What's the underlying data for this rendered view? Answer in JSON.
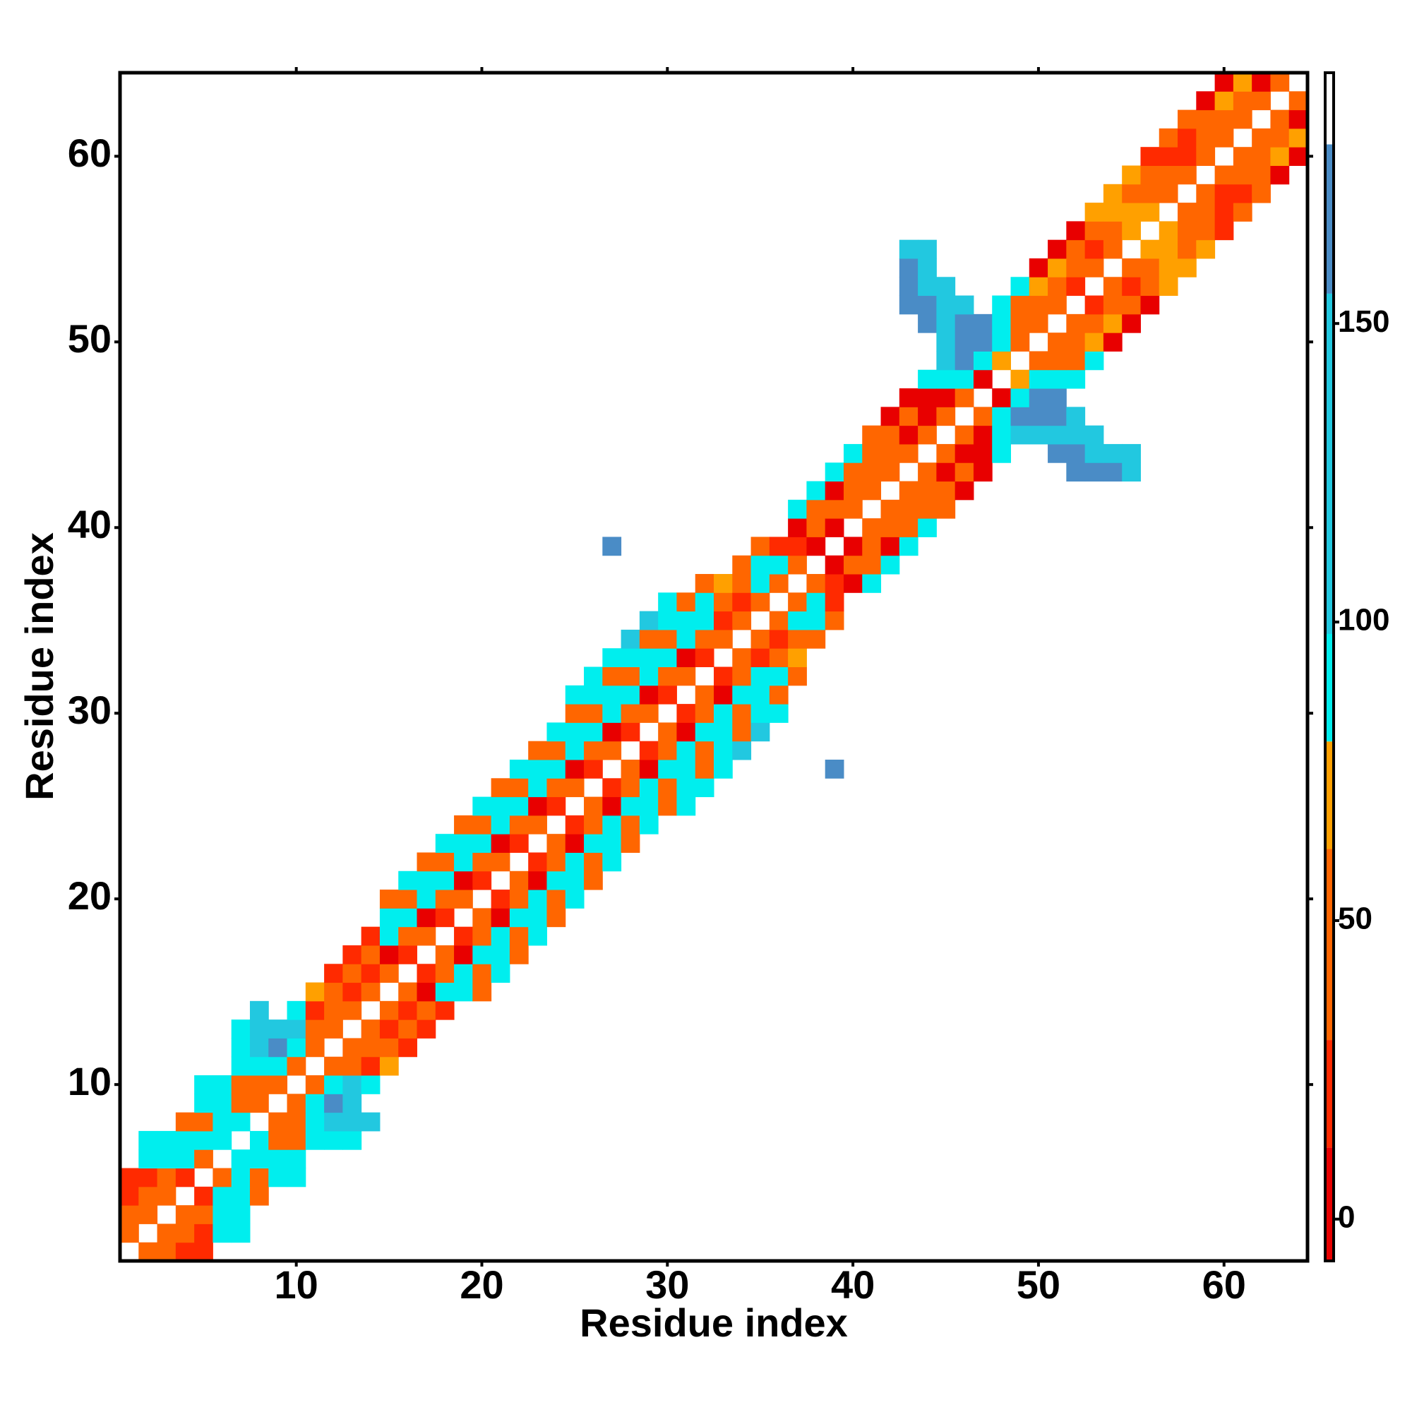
{
  "chart_data": {
    "type": "heatmap",
    "xlabel": "Residue index",
    "ylabel": "Residue index",
    "xlim": [
      0.5,
      64.5
    ],
    "ylim": [
      0.5,
      64.5
    ],
    "xticks": [
      10,
      20,
      30,
      40,
      50,
      60
    ],
    "yticks": [
      10,
      20,
      30,
      40,
      50,
      60
    ],
    "symmetric": true,
    "clim": [
      -7,
      192
    ],
    "cticks": [
      0,
      50,
      100,
      150
    ],
    "colorscale": [
      [
        -7,
        "#e80000"
      ],
      [
        12,
        "#ff2a00"
      ],
      [
        30,
        "#ff6600"
      ],
      [
        62,
        "#ffa000"
      ],
      [
        80,
        "#00eeee"
      ],
      [
        98,
        "#22c8e0"
      ],
      [
        155,
        "#4a8cc6"
      ],
      [
        180,
        "#ffffff"
      ]
    ],
    "cells": [
      [
        1,
        2,
        45
      ],
      [
        1,
        3,
        45
      ],
      [
        1,
        4,
        20
      ],
      [
        1,
        5,
        20
      ],
      [
        2,
        3,
        45
      ],
      [
        2,
        4,
        45
      ],
      [
        2,
        5,
        20
      ],
      [
        2,
        6,
        88
      ],
      [
        2,
        7,
        88
      ],
      [
        3,
        4,
        45
      ],
      [
        3,
        5,
        45
      ],
      [
        3,
        6,
        88
      ],
      [
        3,
        7,
        88
      ],
      [
        4,
        5,
        20
      ],
      [
        4,
        6,
        88
      ],
      [
        4,
        7,
        88
      ],
      [
        4,
        8,
        45
      ],
      [
        5,
        6,
        45
      ],
      [
        5,
        7,
        88
      ],
      [
        5,
        8,
        45
      ],
      [
        5,
        9,
        88
      ],
      [
        5,
        10,
        88
      ],
      [
        6,
        7,
        88
      ],
      [
        6,
        8,
        88
      ],
      [
        6,
        9,
        88
      ],
      [
        6,
        10,
        88
      ],
      [
        7,
        8,
        88
      ],
      [
        7,
        9,
        45
      ],
      [
        7,
        10,
        45
      ],
      [
        7,
        11,
        88
      ],
      [
        7,
        12,
        88
      ],
      [
        7,
        13,
        88
      ],
      [
        8,
        9,
        45
      ],
      [
        8,
        10,
        45
      ],
      [
        8,
        11,
        88
      ],
      [
        8,
        12,
        120
      ],
      [
        8,
        13,
        120
      ],
      [
        8,
        14,
        120
      ],
      [
        9,
        10,
        45
      ],
      [
        9,
        11,
        88
      ],
      [
        9,
        12,
        165
      ],
      [
        9,
        13,
        120
      ],
      [
        10,
        11,
        45
      ],
      [
        10,
        12,
        88
      ],
      [
        10,
        13,
        120
      ],
      [
        10,
        14,
        88
      ],
      [
        11,
        12,
        45
      ],
      [
        11,
        13,
        45
      ],
      [
        11,
        14,
        20
      ],
      [
        11,
        15,
        70
      ],
      [
        12,
        13,
        45
      ],
      [
        12,
        14,
        45
      ],
      [
        12,
        15,
        45
      ],
      [
        12,
        16,
        20
      ],
      [
        13,
        14,
        45
      ],
      [
        13,
        15,
        20
      ],
      [
        13,
        16,
        45
      ],
      [
        13,
        17,
        20
      ],
      [
        14,
        15,
        45
      ],
      [
        14,
        16,
        20
      ],
      [
        14,
        17,
        45
      ],
      [
        14,
        18,
        20
      ],
      [
        15,
        16,
        45
      ],
      [
        15,
        17,
        5
      ],
      [
        15,
        18,
        88
      ],
      [
        15,
        19,
        88
      ],
      [
        15,
        20,
        45
      ],
      [
        16,
        17,
        20
      ],
      [
        16,
        18,
        45
      ],
      [
        16,
        19,
        88
      ],
      [
        16,
        20,
        45
      ],
      [
        16,
        21,
        88
      ],
      [
        17,
        18,
        45
      ],
      [
        17,
        19,
        5
      ],
      [
        17,
        20,
        88
      ],
      [
        17,
        21,
        88
      ],
      [
        17,
        22,
        45
      ],
      [
        18,
        19,
        20
      ],
      [
        18,
        20,
        45
      ],
      [
        18,
        21,
        88
      ],
      [
        18,
        22,
        45
      ],
      [
        18,
        23,
        88
      ],
      [
        19,
        20,
        45
      ],
      [
        19,
        21,
        5
      ],
      [
        19,
        22,
        88
      ],
      [
        19,
        23,
        88
      ],
      [
        19,
        24,
        45
      ],
      [
        20,
        21,
        20
      ],
      [
        20,
        22,
        45
      ],
      [
        20,
        23,
        88
      ],
      [
        20,
        24,
        45
      ],
      [
        20,
        25,
        88
      ],
      [
        21,
        22,
        45
      ],
      [
        21,
        23,
        5
      ],
      [
        21,
        24,
        88
      ],
      [
        21,
        25,
        88
      ],
      [
        21,
        26,
        45
      ],
      [
        22,
        23,
        20
      ],
      [
        22,
        24,
        45
      ],
      [
        22,
        25,
        88
      ],
      [
        22,
        26,
        45
      ],
      [
        22,
        27,
        88
      ],
      [
        23,
        24,
        45
      ],
      [
        23,
        25,
        5
      ],
      [
        23,
        26,
        88
      ],
      [
        23,
        27,
        88
      ],
      [
        23,
        28,
        45
      ],
      [
        24,
        25,
        20
      ],
      [
        24,
        26,
        45
      ],
      [
        24,
        27,
        88
      ],
      [
        24,
        28,
        45
      ],
      [
        24,
        29,
        88
      ],
      [
        25,
        26,
        45
      ],
      [
        25,
        27,
        5
      ],
      [
        25,
        28,
        88
      ],
      [
        25,
        29,
        88
      ],
      [
        25,
        30,
        45
      ],
      [
        25,
        31,
        88
      ],
      [
        26,
        27,
        20
      ],
      [
        26,
        28,
        45
      ],
      [
        26,
        29,
        88
      ],
      [
        26,
        30,
        45
      ],
      [
        26,
        31,
        88
      ],
      [
        26,
        32,
        88
      ],
      [
        27,
        28,
        45
      ],
      [
        27,
        29,
        5
      ],
      [
        27,
        30,
        88
      ],
      [
        27,
        31,
        88
      ],
      [
        27,
        32,
        45
      ],
      [
        27,
        33,
        88
      ],
      [
        27,
        39,
        165
      ],
      [
        28,
        29,
        20
      ],
      [
        28,
        30,
        45
      ],
      [
        28,
        31,
        88
      ],
      [
        28,
        32,
        45
      ],
      [
        28,
        33,
        88
      ],
      [
        28,
        34,
        120
      ],
      [
        29,
        30,
        45
      ],
      [
        29,
        31,
        5
      ],
      [
        29,
        32,
        88
      ],
      [
        29,
        33,
        88
      ],
      [
        29,
        34,
        45
      ],
      [
        29,
        35,
        120
      ],
      [
        30,
        31,
        20
      ],
      [
        30,
        32,
        45
      ],
      [
        30,
        33,
        88
      ],
      [
        30,
        34,
        45
      ],
      [
        30,
        35,
        88
      ],
      [
        30,
        36,
        88
      ],
      [
        31,
        32,
        45
      ],
      [
        31,
        33,
        5
      ],
      [
        31,
        34,
        88
      ],
      [
        31,
        35,
        88
      ],
      [
        31,
        36,
        45
      ],
      [
        32,
        33,
        20
      ],
      [
        32,
        34,
        45
      ],
      [
        32,
        35,
        88
      ],
      [
        32,
        36,
        88
      ],
      [
        32,
        37,
        45
      ],
      [
        33,
        34,
        45
      ],
      [
        33,
        35,
        20
      ],
      [
        33,
        36,
        45
      ],
      [
        33,
        37,
        70
      ],
      [
        34,
        35,
        45
      ],
      [
        34,
        36,
        20
      ],
      [
        34,
        37,
        45
      ],
      [
        34,
        38,
        45
      ],
      [
        35,
        36,
        45
      ],
      [
        35,
        37,
        88
      ],
      [
        35,
        38,
        88
      ],
      [
        35,
        39,
        45
      ],
      [
        36,
        37,
        45
      ],
      [
        36,
        38,
        88
      ],
      [
        36,
        39,
        20
      ],
      [
        37,
        38,
        45
      ],
      [
        37,
        39,
        20
      ],
      [
        37,
        40,
        5
      ],
      [
        37,
        41,
        88
      ],
      [
        38,
        39,
        5
      ],
      [
        38,
        40,
        45
      ],
      [
        38,
        41,
        45
      ],
      [
        38,
        42,
        88
      ],
      [
        39,
        40,
        5
      ],
      [
        39,
        41,
        45
      ],
      [
        39,
        42,
        5
      ],
      [
        39,
        43,
        88
      ],
      [
        40,
        41,
        45
      ],
      [
        40,
        42,
        45
      ],
      [
        40,
        43,
        45
      ],
      [
        40,
        44,
        88
      ],
      [
        41,
        42,
        45
      ],
      [
        41,
        43,
        45
      ],
      [
        41,
        44,
        45
      ],
      [
        41,
        45,
        45
      ],
      [
        42,
        43,
        45
      ],
      [
        42,
        44,
        45
      ],
      [
        42,
        45,
        45
      ],
      [
        42,
        46,
        5
      ],
      [
        43,
        44,
        45
      ],
      [
        43,
        45,
        5
      ],
      [
        43,
        46,
        45
      ],
      [
        43,
        47,
        5
      ],
      [
        43,
        52,
        165
      ],
      [
        43,
        53,
        165
      ],
      [
        43,
        54,
        165
      ],
      [
        43,
        55,
        120
      ],
      [
        44,
        45,
        45
      ],
      [
        44,
        46,
        5
      ],
      [
        44,
        47,
        5
      ],
      [
        44,
        48,
        88
      ],
      [
        44,
        51,
        165
      ],
      [
        44,
        52,
        165
      ],
      [
        44,
        53,
        120
      ],
      [
        44,
        54,
        120
      ],
      [
        44,
        55,
        120
      ],
      [
        45,
        46,
        45
      ],
      [
        45,
        47,
        5
      ],
      [
        45,
        48,
        88
      ],
      [
        45,
        49,
        120
      ],
      [
        45,
        50,
        120
      ],
      [
        45,
        51,
        120
      ],
      [
        45,
        52,
        120
      ],
      [
        45,
        53,
        120
      ],
      [
        46,
        47,
        45
      ],
      [
        46,
        48,
        88
      ],
      [
        46,
        49,
        165
      ],
      [
        46,
        50,
        165
      ],
      [
        46,
        51,
        165
      ],
      [
        46,
        52,
        120
      ],
      [
        47,
        48,
        5
      ],
      [
        47,
        49,
        88
      ],
      [
        47,
        50,
        165
      ],
      [
        47,
        51,
        165
      ],
      [
        48,
        49,
        70
      ],
      [
        48,
        50,
        88
      ],
      [
        48,
        51,
        88
      ],
      [
        48,
        52,
        88
      ],
      [
        49,
        50,
        45
      ],
      [
        49,
        51,
        45
      ],
      [
        49,
        52,
        45
      ],
      [
        49,
        53,
        88
      ],
      [
        50,
        51,
        45
      ],
      [
        50,
        52,
        45
      ],
      [
        50,
        53,
        70
      ],
      [
        50,
        54,
        5
      ],
      [
        51,
        52,
        45
      ],
      [
        51,
        53,
        45
      ],
      [
        51,
        54,
        70
      ],
      [
        51,
        55,
        5
      ],
      [
        52,
        53,
        20
      ],
      [
        52,
        54,
        45
      ],
      [
        52,
        55,
        45
      ],
      [
        52,
        56,
        5
      ],
      [
        53,
        54,
        45
      ],
      [
        53,
        55,
        20
      ],
      [
        53,
        56,
        45
      ],
      [
        53,
        57,
        70
      ],
      [
        54,
        55,
        45
      ],
      [
        54,
        56,
        45
      ],
      [
        54,
        57,
        70
      ],
      [
        54,
        58,
        70
      ],
      [
        55,
        56,
        70
      ],
      [
        55,
        57,
        70
      ],
      [
        55,
        58,
        45
      ],
      [
        55,
        59,
        70
      ],
      [
        56,
        57,
        70
      ],
      [
        56,
        58,
        45
      ],
      [
        56,
        59,
        45
      ],
      [
        56,
        60,
        20
      ],
      [
        57,
        58,
        45
      ],
      [
        57,
        59,
        45
      ],
      [
        57,
        60,
        20
      ],
      [
        57,
        61,
        45
      ],
      [
        58,
        59,
        45
      ],
      [
        58,
        60,
        20
      ],
      [
        58,
        61,
        20
      ],
      [
        58,
        62,
        45
      ],
      [
        59,
        60,
        45
      ],
      [
        59,
        61,
        45
      ],
      [
        59,
        62,
        45
      ],
      [
        59,
        63,
        5
      ],
      [
        60,
        61,
        45
      ],
      [
        60,
        62,
        45
      ],
      [
        60,
        63,
        70
      ],
      [
        60,
        64,
        5
      ],
      [
        61,
        62,
        45
      ],
      [
        61,
        63,
        45
      ],
      [
        61,
        64,
        70
      ],
      [
        62,
        63,
        45
      ],
      [
        62,
        64,
        5
      ],
      [
        63,
        64,
        45
      ]
    ]
  }
}
